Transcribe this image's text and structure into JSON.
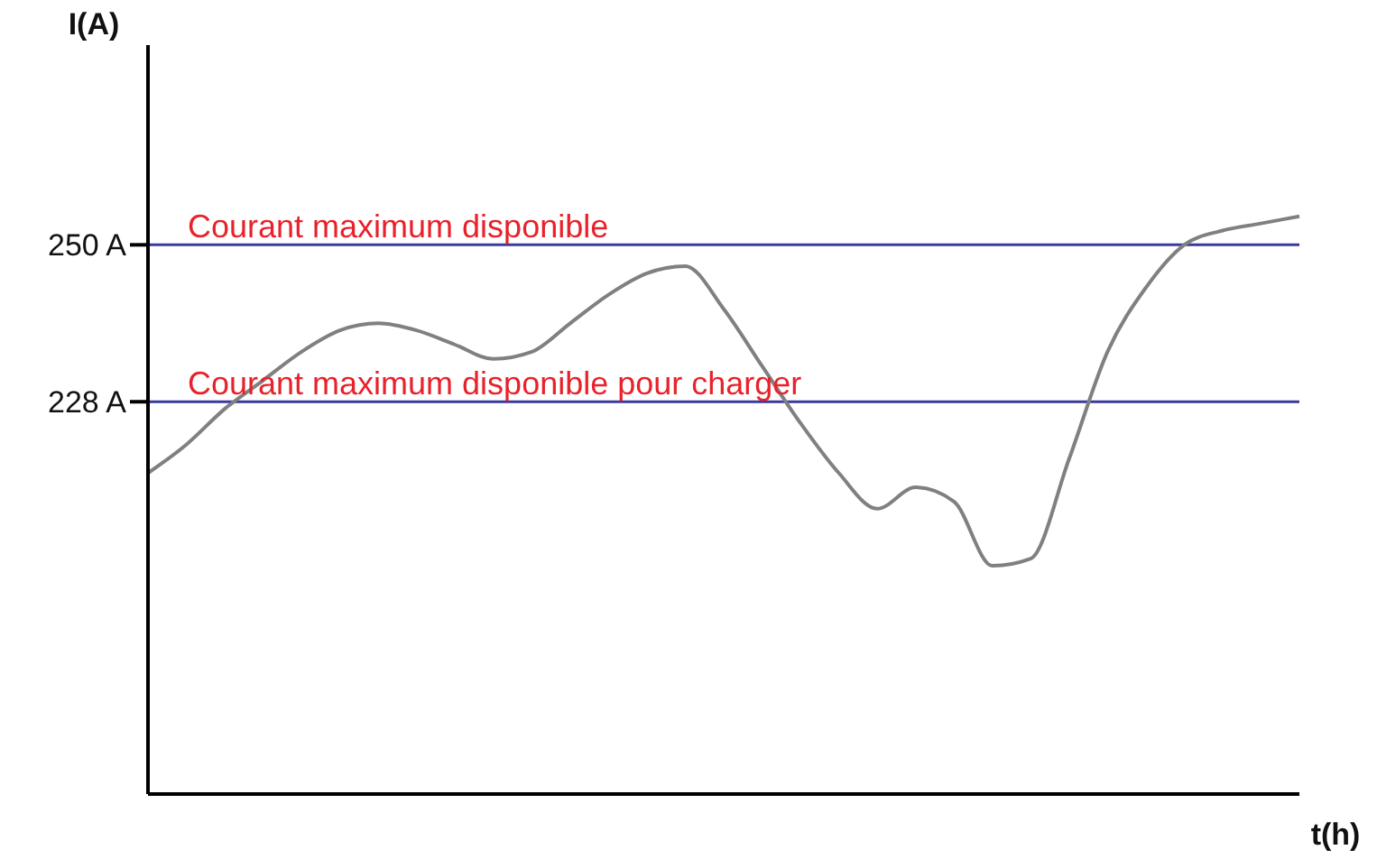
{
  "chart_data": {
    "type": "line",
    "xlabel": "t(h)",
    "ylabel": "I(A)",
    "categories": [
      null,
      null,
      null,
      null,
      null,
      null,
      null,
      null,
      null,
      null,
      null,
      null,
      null,
      null,
      null,
      null,
      null,
      null,
      null,
      null,
      null,
      null,
      null,
      null,
      null,
      null,
      null,
      null,
      null,
      null,
      null
    ],
    "series": [
      {
        "color": "#808080",
        "values": [
          218,
          222,
          227,
          231,
          235,
          238,
          239,
          238,
          236,
          234,
          235,
          239,
          243,
          246,
          247,
          241,
          233,
          225,
          218,
          213,
          216,
          214,
          205,
          206,
          220,
          235,
          244,
          250,
          252,
          253,
          254
        ]
      }
    ],
    "ylim": [
      173,
      278
    ],
    "yticks": [
      {
        "value": 228,
        "label": "228 A"
      },
      {
        "value": 250,
        "label": "250 A"
      }
    ],
    "ref_lines": [
      {
        "axis": "y",
        "value": 250,
        "label": "Courant maximum disponible",
        "color": "#3a3a9c"
      },
      {
        "axis": "y",
        "value": 228,
        "label": "Courant maximum disponible pour charger",
        "color": "#3a3a9c"
      }
    ],
    "marker": "none",
    "grid": false,
    "legend": false
  }
}
